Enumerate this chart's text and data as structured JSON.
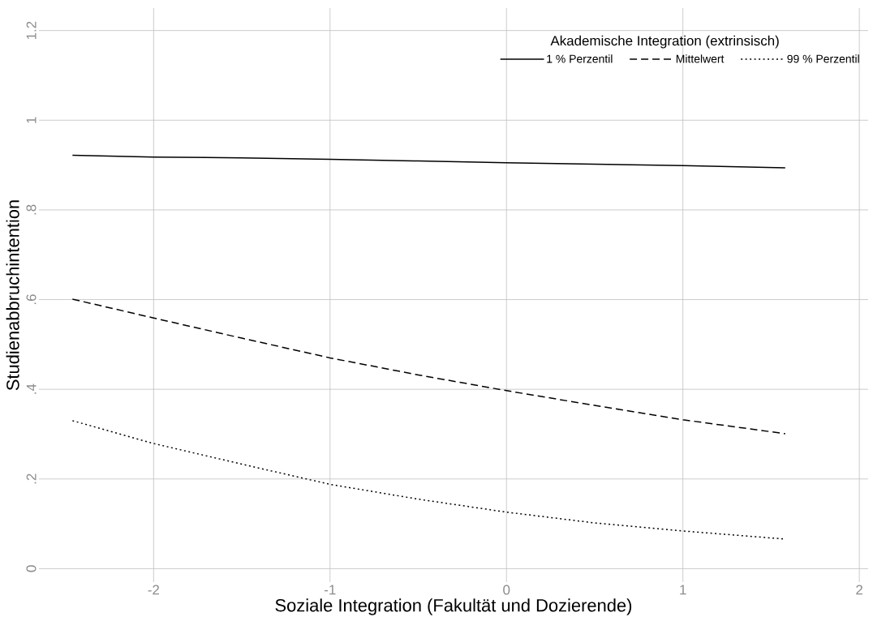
{
  "chart_data": {
    "type": "line",
    "xlabel": "Soziale Integration (Fakultät und Dozierende)",
    "ylabel": "Studienabbruchintention",
    "legend_title": "Akademische Integration (extrinsisch)",
    "x": [
      -2.46,
      -2,
      -1.5,
      -1,
      -0.5,
      0,
      0.5,
      1,
      1.58
    ],
    "series": [
      {
        "name": "1 % Perzentil",
        "color": "#000000",
        "line_style": "solid",
        "values": [
          0.922,
          0.918,
          0.916,
          0.913,
          0.909,
          0.905,
          0.902,
          0.899,
          0.894
        ]
      },
      {
        "name": "Mittelwert",
        "color": "#000000",
        "line_style": "dashed",
        "values": [
          0.601,
          0.559,
          0.514,
          0.47,
          0.432,
          0.397,
          0.364,
          0.332,
          0.301
        ]
      },
      {
        "name": "99 % Perzentil",
        "color": "#000000",
        "line_style": "dotted",
        "values": [
          0.33,
          0.279,
          0.233,
          0.188,
          0.155,
          0.126,
          0.102,
          0.084,
          0.066
        ]
      }
    ],
    "xlim": [
      -2.65,
      2.05
    ],
    "ylim": [
      -0.03,
      1.25
    ],
    "xticks": [
      -2,
      -1,
      0,
      1,
      2
    ],
    "yticks": [
      {
        "value": 0,
        "label": "0"
      },
      {
        "value": 0.2,
        "label": ".2"
      },
      {
        "value": 0.4,
        "label": ".4"
      },
      {
        "value": 0.6,
        "label": ".6"
      },
      {
        "value": 0.8,
        "label": ".8"
      },
      {
        "value": 1,
        "label": "1"
      },
      {
        "value": 1.2,
        "label": "1.2"
      }
    ],
    "grid": true,
    "legend": "top right",
    "marker": "none"
  }
}
